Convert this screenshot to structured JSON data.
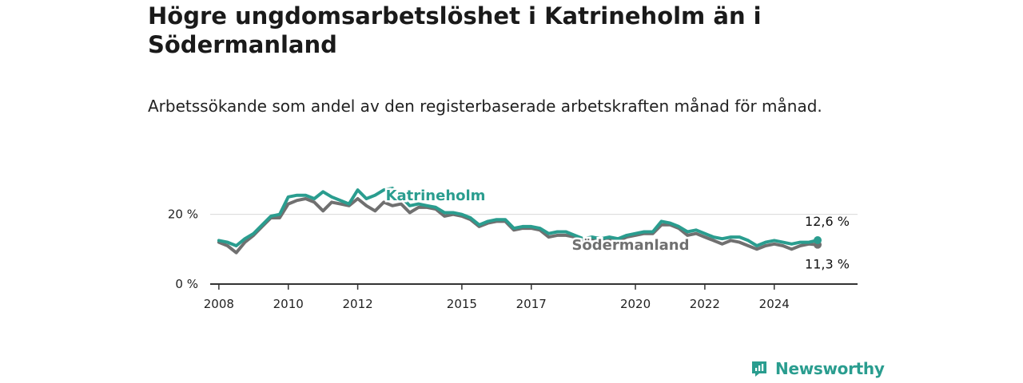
{
  "title": "Högre ungdomsarbetslöshet i Katrineholm än i Södermanland",
  "subtitle": "Arbetssökande som andel av den registerbaserade arbetskraften månad för månad.",
  "brand": {
    "name": "Newsworthy",
    "color": "#2a9d8f"
  },
  "chart_data": {
    "type": "line",
    "x_ticks": [
      "2008",
      "2010",
      "2012",
      "2015",
      "2017",
      "2020",
      "2022",
      "2024"
    ],
    "y_ticks": [
      "0 %",
      "20 %"
    ],
    "ylim": [
      0,
      30
    ],
    "grid": true,
    "series": [
      {
        "name": "Södermanland",
        "color": "#707070",
        "end_label": "11,3 %",
        "points": [
          [
            "2008-01",
            12.0
          ],
          [
            "2008-04",
            11.0
          ],
          [
            "2008-07",
            9.0
          ],
          [
            "2008-10",
            12.0
          ],
          [
            "2009-01",
            14.0
          ],
          [
            "2009-04",
            16.5
          ],
          [
            "2009-07",
            19.0
          ],
          [
            "2009-10",
            19.0
          ],
          [
            "2010-01",
            23.0
          ],
          [
            "2010-04",
            24.0
          ],
          [
            "2010-07",
            24.5
          ],
          [
            "2010-10",
            23.5
          ],
          [
            "2011-01",
            21.0
          ],
          [
            "2011-04",
            23.5
          ],
          [
            "2011-07",
            23.0
          ],
          [
            "2011-10",
            22.5
          ],
          [
            "2012-01",
            24.5
          ],
          [
            "2012-04",
            22.5
          ],
          [
            "2012-07",
            21.0
          ],
          [
            "2012-10",
            23.5
          ],
          [
            "2013-01",
            22.5
          ],
          [
            "2013-04",
            23.0
          ],
          [
            "2013-07",
            20.5
          ],
          [
            "2013-10",
            22.0
          ],
          [
            "2014-01",
            22.0
          ],
          [
            "2014-04",
            21.5
          ],
          [
            "2014-07",
            19.5
          ],
          [
            "2014-10",
            20.0
          ],
          [
            "2015-01",
            19.5
          ],
          [
            "2015-04",
            18.5
          ],
          [
            "2015-07",
            16.5
          ],
          [
            "2015-10",
            17.5
          ],
          [
            "2016-01",
            18.0
          ],
          [
            "2016-04",
            18.0
          ],
          [
            "2016-07",
            15.5
          ],
          [
            "2016-10",
            16.0
          ],
          [
            "2017-01",
            16.0
          ],
          [
            "2017-04",
            15.5
          ],
          [
            "2017-07",
            13.5
          ],
          [
            "2017-10",
            14.0
          ],
          [
            "2018-01",
            14.0
          ],
          [
            "2018-04",
            13.5
          ],
          [
            "2018-07",
            12.5
          ],
          [
            "2018-10",
            13.0
          ],
          [
            "2019-01",
            13.0
          ],
          [
            "2019-04",
            13.0
          ],
          [
            "2019-07",
            12.5
          ],
          [
            "2019-10",
            13.5
          ],
          [
            "2020-01",
            14.0
          ],
          [
            "2020-04",
            14.5
          ],
          [
            "2020-07",
            14.5
          ],
          [
            "2020-10",
            17.0
          ],
          [
            "2021-01",
            17.0
          ],
          [
            "2021-04",
            16.0
          ],
          [
            "2021-07",
            14.0
          ],
          [
            "2021-10",
            14.5
          ],
          [
            "2022-01",
            13.5
          ],
          [
            "2022-04",
            12.5
          ],
          [
            "2022-07",
            11.5
          ],
          [
            "2022-10",
            12.5
          ],
          [
            "2023-01",
            12.0
          ],
          [
            "2023-04",
            11.0
          ],
          [
            "2023-07",
            10.0
          ],
          [
            "2023-10",
            11.0
          ],
          [
            "2024-01",
            11.5
          ],
          [
            "2024-04",
            11.0
          ],
          [
            "2024-07",
            10.0
          ],
          [
            "2024-10",
            11.0
          ],
          [
            "2025-01",
            11.5
          ],
          [
            "2025-04",
            11.3
          ]
        ]
      },
      {
        "name": "Katrineholm",
        "color": "#2a9d8f",
        "end_label": "12,6 %",
        "points": [
          [
            "2008-01",
            12.5
          ],
          [
            "2008-04",
            12.0
          ],
          [
            "2008-07",
            11.0
          ],
          [
            "2008-10",
            13.0
          ],
          [
            "2009-01",
            14.5
          ],
          [
            "2009-04",
            17.0
          ],
          [
            "2009-07",
            19.5
          ],
          [
            "2009-10",
            20.0
          ],
          [
            "2010-01",
            25.0
          ],
          [
            "2010-04",
            25.5
          ],
          [
            "2010-07",
            25.5
          ],
          [
            "2010-10",
            24.5
          ],
          [
            "2011-01",
            26.5
          ],
          [
            "2011-04",
            25.0
          ],
          [
            "2011-07",
            24.0
          ],
          [
            "2011-10",
            23.0
          ],
          [
            "2012-01",
            27.0
          ],
          [
            "2012-04",
            24.5
          ],
          [
            "2012-07",
            25.5
          ],
          [
            "2012-10",
            27.0
          ],
          [
            "2013-01",
            27.5
          ],
          [
            "2013-04",
            25.0
          ],
          [
            "2013-07",
            22.5
          ],
          [
            "2013-10",
            23.0
          ],
          [
            "2014-01",
            22.5
          ],
          [
            "2014-04",
            22.0
          ],
          [
            "2014-07",
            20.5
          ],
          [
            "2014-10",
            20.5
          ],
          [
            "2015-01",
            20.0
          ],
          [
            "2015-04",
            19.0
          ],
          [
            "2015-07",
            17.0
          ],
          [
            "2015-10",
            18.0
          ],
          [
            "2016-01",
            18.5
          ],
          [
            "2016-04",
            18.5
          ],
          [
            "2016-07",
            16.0
          ],
          [
            "2016-10",
            16.5
          ],
          [
            "2017-01",
            16.5
          ],
          [
            "2017-04",
            16.0
          ],
          [
            "2017-07",
            14.5
          ],
          [
            "2017-10",
            15.0
          ],
          [
            "2018-01",
            15.0
          ],
          [
            "2018-04",
            14.0
          ],
          [
            "2018-07",
            13.0
          ],
          [
            "2018-10",
            13.5
          ],
          [
            "2019-01",
            13.0
          ],
          [
            "2019-04",
            13.5
          ],
          [
            "2019-07",
            13.0
          ],
          [
            "2019-10",
            14.0
          ],
          [
            "2020-01",
            14.5
          ],
          [
            "2020-04",
            15.0
          ],
          [
            "2020-07",
            15.0
          ],
          [
            "2020-10",
            18.0
          ],
          [
            "2021-01",
            17.5
          ],
          [
            "2021-04",
            16.5
          ],
          [
            "2021-07",
            15.0
          ],
          [
            "2021-10",
            15.5
          ],
          [
            "2022-01",
            14.5
          ],
          [
            "2022-04",
            13.5
          ],
          [
            "2022-07",
            13.0
          ],
          [
            "2022-10",
            13.5
          ],
          [
            "2023-01",
            13.5
          ],
          [
            "2023-04",
            12.5
          ],
          [
            "2023-07",
            11.0
          ],
          [
            "2023-10",
            12.0
          ],
          [
            "2024-01",
            12.5
          ],
          [
            "2024-04",
            12.0
          ],
          [
            "2024-07",
            11.5
          ],
          [
            "2024-10",
            12.0
          ],
          [
            "2025-01",
            12.0
          ],
          [
            "2025-04",
            12.6
          ]
        ]
      }
    ]
  }
}
